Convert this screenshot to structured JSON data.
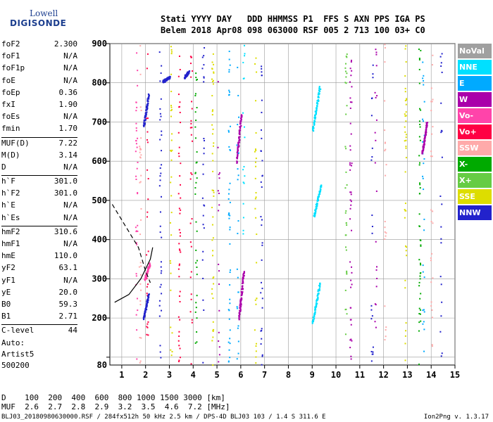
{
  "logo": {
    "line1": "Lowell",
    "line2": "DIGISONDE"
  },
  "header": {
    "line1": "Stati YYYY DAY   DDD HHMMSS P1  FFS S AXN PPS IGA PS",
    "line2": "Belem 2018 Apr08 098 063000 RSF 005 2 713 100 03+ C0"
  },
  "params": [
    {
      "k": "foF2",
      "v": "2.300"
    },
    {
      "k": "foF1",
      "v": "N/A"
    },
    {
      "k": "foF1p",
      "v": "N/A"
    },
    {
      "k": "foE",
      "v": "N/A"
    },
    {
      "k": "foEp",
      "v": "0.36"
    },
    {
      "k": "fxI",
      "v": "1.90"
    },
    {
      "k": "foEs",
      "v": "N/A"
    },
    {
      "k": "fmin",
      "v": "1.70"
    },
    {
      "k": "MUF(D)",
      "v": "7.22"
    },
    {
      "k": "M(D)",
      "v": "3.14"
    },
    {
      "k": "D",
      "v": "N/A"
    },
    {
      "k": "h`F",
      "v": "301.0"
    },
    {
      "k": "h`F2",
      "v": "301.0"
    },
    {
      "k": "h`E",
      "v": "N/A"
    },
    {
      "k": "h`Es",
      "v": "N/A"
    },
    {
      "k": "hmF2",
      "v": "310.6"
    },
    {
      "k": "hmF1",
      "v": "N/A"
    },
    {
      "k": "hmE",
      "v": "110.0"
    },
    {
      "k": "yF2",
      "v": "63.1"
    },
    {
      "k": "yF1",
      "v": "N/A"
    },
    {
      "k": "yE",
      "v": "20.0"
    },
    {
      "k": "B0",
      "v": "59.3"
    },
    {
      "k": "B1",
      "v": "2.71"
    },
    {
      "k": "C-level",
      "v": "44"
    }
  ],
  "auto": {
    "line1": "Auto:",
    "line2": "Artist5",
    "line3": "500200"
  },
  "dtable": {
    "d_row": "D    100  200  400  600  800 1000 1500 3000 [km]",
    "muf_row": "MUF  2.6  2.7  2.8  2.9  3.2  3.5  4.6  7.2 [MHz]"
  },
  "footer": {
    "info": "BLJ03_20180980630000.RSF / 284fx512h 50 kHz 2.5 km / DPS-4D BLJ03 103 / 1.4 S 311.6 E",
    "version": "Ion2Png v. 1.3.17"
  },
  "legend": [
    {
      "label": "NoVal",
      "color": "#a0a0a0"
    },
    {
      "label": "NNE",
      "color": "#00e0ff"
    },
    {
      "label": "E",
      "color": "#00aaff"
    },
    {
      "label": "W",
      "color": "#aa00aa"
    },
    {
      "label": "Vo-",
      "color": "#ff44aa"
    },
    {
      "label": "Vo+",
      "color": "#ff0044"
    },
    {
      "label": "SSW",
      "color": "#ffaaaa"
    },
    {
      "label": "X-",
      "color": "#00aa00"
    },
    {
      "label": "X+",
      "color": "#66cc44"
    },
    {
      "label": "SSE",
      "color": "#dddd00"
    },
    {
      "label": "NNW",
      "color": "#2222cc"
    }
  ],
  "chart_data": {
    "type": "scatter",
    "title": "",
    "xlabel": "",
    "ylabel": "",
    "xlim": [
      0.5,
      15
    ],
    "ylim": [
      80,
      900
    ],
    "xticks": [
      1,
      2,
      3,
      4,
      5,
      6,
      7,
      8,
      9,
      10,
      11,
      12,
      13,
      14,
      15
    ],
    "yticks": [
      100,
      200,
      300,
      400,
      500,
      600,
      700,
      800,
      900
    ],
    "ytick_labels": [
      "200",
      "300",
      "400",
      "500",
      "600",
      "700",
      "800",
      "900"
    ],
    "ybottom_label": "80",
    "grid": true,
    "legend_position": "right",
    "traces": [
      {
        "name": "NNE",
        "f0": 9.05,
        "f1": 9.35,
        "h0": 460,
        "h1": 540
      },
      {
        "name": "NNE",
        "f0": 9.0,
        "f1": 9.3,
        "h0": 680,
        "h1": 790
      },
      {
        "name": "NNE",
        "f0": 9.0,
        "f1": 9.3,
        "h0": 190,
        "h1": 290
      },
      {
        "name": "NNW",
        "f0": 1.9,
        "f1": 2.1,
        "h0": 200,
        "h1": 260
      },
      {
        "name": "NNW",
        "f0": 1.9,
        "f1": 2.1,
        "h0": 690,
        "h1": 770
      },
      {
        "name": "NNW",
        "f0": 2.7,
        "f1": 3.0,
        "h0": 805,
        "h1": 815
      },
      {
        "name": "NNW",
        "f0": 3.6,
        "f1": 3.8,
        "h0": 815,
        "h1": 830
      },
      {
        "name": "Vo-",
        "f0": 1.95,
        "f1": 2.15,
        "h0": 300,
        "h1": 340
      },
      {
        "name": "W",
        "f0": 5.9,
        "f1": 6.1,
        "h0": 200,
        "h1": 320
      },
      {
        "name": "W",
        "f0": 5.8,
        "f1": 6.0,
        "h0": 600,
        "h1": 720
      },
      {
        "name": "W",
        "f0": 13.6,
        "f1": 13.8,
        "h0": 620,
        "h1": 700
      }
    ],
    "curves": [
      {
        "name": "profile",
        "f": [
          0.7,
          1.3,
          1.8,
          2.2,
          2.3
        ],
        "h": [
          240,
          260,
          300,
          350,
          380
        ]
      },
      {
        "name": "trace-dashed",
        "f": [
          0.6,
          1.2,
          1.7,
          2.0,
          2.2
        ],
        "h": [
          490,
          430,
          380,
          320,
          290
        ]
      }
    ]
  }
}
